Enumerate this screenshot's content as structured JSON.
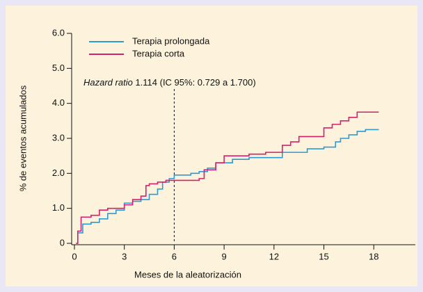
{
  "chart_data": {
    "type": "line",
    "step": true,
    "x_label": "Meses de la aleatorización",
    "y_label": "% de eventos acumulados",
    "annotation": {
      "italic": "Hazard ratio",
      "text": "1.114 (IC 95%: 0.729 a 1.700)"
    },
    "vline": 6,
    "xlim": [
      0,
      20.5
    ],
    "xticks": [
      0,
      3,
      6,
      9,
      12,
      15,
      18
    ],
    "ylim": [
      0,
      6
    ],
    "yticks": [
      0,
      {
        "value": 1,
        "label": "1.0"
      },
      {
        "value": 2,
        "label": "2.0"
      },
      {
        "value": 3,
        "label": "3.0"
      },
      {
        "value": 4,
        "label": "4.0"
      },
      {
        "value": 5,
        "label": "5.0"
      },
      {
        "value": 6,
        "label": "6.0"
      }
    ],
    "series": [
      {
        "name": "Terapia prolongada",
        "color": "#2a9bd4",
        "x": [
          0.1,
          0.2,
          0.5,
          1,
          1.5,
          2,
          2.5,
          3,
          3.5,
          4,
          4.5,
          5,
          5.3,
          5.7,
          6,
          7,
          7.5,
          8,
          8.5,
          9.5,
          10.5,
          12.5,
          14,
          15,
          15.7,
          16,
          16.5,
          17,
          17.5,
          18.3
        ],
        "values": [
          0,
          0.3,
          0.55,
          0.6,
          0.7,
          0.85,
          0.95,
          1.15,
          1.2,
          1.25,
          1.4,
          1.55,
          1.75,
          1.85,
          1.95,
          2,
          2.05,
          2.15,
          2.3,
          2.4,
          2.45,
          2.6,
          2.7,
          2.75,
          2.9,
          3,
          3.1,
          3.2,
          3.25,
          3.25
        ]
      },
      {
        "name": "Terapia corta",
        "color": "#d4206c",
        "x": [
          0.1,
          0.2,
          0.4,
          1,
          1.5,
          2,
          3,
          3.5,
          4,
          4.3,
          4.5,
          5,
          5.5,
          7.5,
          7.8,
          8.5,
          9,
          10.5,
          11.5,
          12.5,
          13,
          13.5,
          15,
          15.5,
          16,
          16.5,
          17,
          18.3
        ],
        "values": [
          0,
          0.35,
          0.75,
          0.8,
          0.95,
          1,
          1.1,
          1.25,
          1.35,
          1.65,
          1.7,
          1.75,
          1.8,
          1.85,
          2.1,
          2.3,
          2.5,
          2.55,
          2.6,
          2.8,
          2.9,
          3.05,
          3.3,
          3.4,
          3.5,
          3.6,
          3.75,
          3.75
        ]
      }
    ]
  }
}
